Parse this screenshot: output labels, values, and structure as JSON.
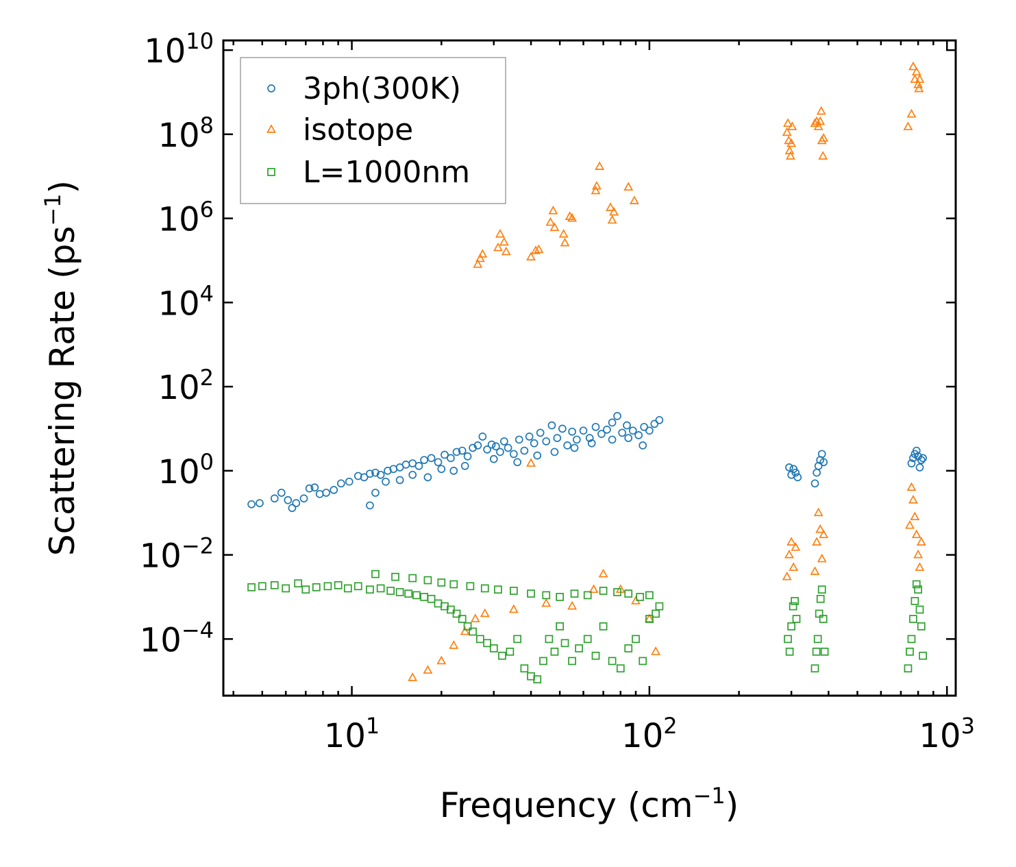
{
  "chart_data": {
    "type": "scatter",
    "title": "",
    "xlabel": {
      "text": "Frequency (cm",
      "sup": "−1",
      "tail": ")"
    },
    "ylabel": {
      "text": "Scattering Rate (ps",
      "sup": "−1",
      "tail": ")"
    },
    "xscale": "log",
    "yscale": "log",
    "xlim": [
      3.7,
      1070
    ],
    "ylim": [
      4.5e-06,
      17000000000
    ],
    "x_ticks": [
      {
        "value": 10,
        "base": "10",
        "exp": "1"
      },
      {
        "value": 100,
        "base": "10",
        "exp": "2"
      },
      {
        "value": 1000,
        "base": "10",
        "exp": "3"
      }
    ],
    "y_ticks": [
      {
        "value": 0.0001,
        "base": "10",
        "exp": "−4"
      },
      {
        "value": 0.01,
        "base": "10",
        "exp": "−2"
      },
      {
        "value": 1,
        "base": "10",
        "exp": "0"
      },
      {
        "value": 100,
        "base": "10",
        "exp": "2"
      },
      {
        "value": 10000,
        "base": "10",
        "exp": "4"
      },
      {
        "value": 1000000,
        "base": "10",
        "exp": "6"
      },
      {
        "value": 100000000,
        "base": "10",
        "exp": "8"
      },
      {
        "value": 10000000000,
        "base": "10",
        "exp": "10"
      }
    ],
    "legend_position": "top-left",
    "series": [
      {
        "name": "3ph(300K)",
        "marker": "circle",
        "color": "#1f77b4",
        "points": [
          [
            4.6,
            0.16
          ],
          [
            4.9,
            0.17
          ],
          [
            5.5,
            0.22
          ],
          [
            5.8,
            0.3
          ],
          [
            6.1,
            0.2
          ],
          [
            6.3,
            0.13
          ],
          [
            6.5,
            0.17
          ],
          [
            6.9,
            0.22
          ],
          [
            7.2,
            0.38
          ],
          [
            7.5,
            0.4
          ],
          [
            7.8,
            0.28
          ],
          [
            8.2,
            0.3
          ],
          [
            8.7,
            0.35
          ],
          [
            9.2,
            0.5
          ],
          [
            9.8,
            0.55
          ],
          [
            10.5,
            0.75
          ],
          [
            11.0,
            0.7
          ],
          [
            11.5,
            0.85
          ],
          [
            12.0,
            0.9
          ],
          [
            12.5,
            0.8
          ],
          [
            13.2,
            1.0
          ],
          [
            13.8,
            1.1
          ],
          [
            14.5,
            1.2
          ],
          [
            15.2,
            1.4
          ],
          [
            16.0,
            1.5
          ],
          [
            16.8,
            1.3
          ],
          [
            17.5,
            1.8
          ],
          [
            18.5,
            2.0
          ],
          [
            19.5,
            1.6
          ],
          [
            20.5,
            2.4
          ],
          [
            21.5,
            2.0
          ],
          [
            22.5,
            2.8
          ],
          [
            23.5,
            3.0
          ],
          [
            24.5,
            2.2
          ],
          [
            25.5,
            3.5
          ],
          [
            26.5,
            4.0
          ],
          [
            27.5,
            6.5
          ],
          [
            28.5,
            3.2
          ],
          [
            29.5,
            4.2
          ],
          [
            30.5,
            3.8
          ],
          [
            31.5,
            2.8
          ],
          [
            32.5,
            5.0
          ],
          [
            33.5,
            3.5
          ],
          [
            35.0,
            2.5
          ],
          [
            36.5,
            5.5
          ],
          [
            38.0,
            3.0
          ],
          [
            39.5,
            6.5
          ],
          [
            41.0,
            4.5
          ],
          [
            43.0,
            8.0
          ],
          [
            45.0,
            5.0
          ],
          [
            47.0,
            12.0
          ],
          [
            49.0,
            6.0
          ],
          [
            51.0,
            10.0
          ],
          [
            53.0,
            4.0
          ],
          [
            55.0,
            8.5
          ],
          [
            57.0,
            5.5
          ],
          [
            60.0,
            9.0
          ],
          [
            63.0,
            6.0
          ],
          [
            66.0,
            11.0
          ],
          [
            69.0,
            7.5
          ],
          [
            72.0,
            9.5
          ],
          [
            75.0,
            14.0
          ],
          [
            78.0,
            20.0
          ],
          [
            81.0,
            8.0
          ],
          [
            84.0,
            12.0
          ],
          [
            88.0,
            9.0
          ],
          [
            92.0,
            7.0
          ],
          [
            96.0,
            11.0
          ],
          [
            100.0,
            9.0
          ],
          [
            104.0,
            13.0
          ],
          [
            108.0,
            16.0
          ],
          [
            11.5,
            0.15
          ],
          [
            12.0,
            0.3
          ],
          [
            13.0,
            0.55
          ],
          [
            14.5,
            0.6
          ],
          [
            16.0,
            0.8
          ],
          [
            18.0,
            0.7
          ],
          [
            20.0,
            1.1
          ],
          [
            22.0,
            1.0
          ],
          [
            24.0,
            1.3
          ],
          [
            30.0,
            1.9
          ],
          [
            36.0,
            1.6
          ],
          [
            42.0,
            2.3
          ],
          [
            48.0,
            2.8
          ],
          [
            56.0,
            3.5
          ],
          [
            64.0,
            4.5
          ],
          [
            75.0,
            5.5
          ],
          [
            85.0,
            6.0
          ],
          [
            95.0,
            4.0
          ],
          [
            295,
            1.2
          ],
          [
            300,
            0.8
          ],
          [
            305,
            1.1
          ],
          [
            310,
            0.9
          ],
          [
            315,
            0.7
          ],
          [
            360,
            0.5
          ],
          [
            365,
            0.9
          ],
          [
            370,
            1.3
          ],
          [
            375,
            1.8
          ],
          [
            380,
            2.5
          ],
          [
            385,
            1.6
          ],
          [
            760,
            1.5
          ],
          [
            770,
            2.0
          ],
          [
            780,
            2.5
          ],
          [
            790,
            3.0
          ],
          [
            800,
            2.2
          ],
          [
            810,
            1.2
          ],
          [
            820,
            1.8
          ],
          [
            830,
            2.0
          ]
        ]
      },
      {
        "name": "isotope",
        "marker": "triangle",
        "color": "#ff7f0e",
        "points": [
          [
            26.5,
            80000
          ],
          [
            27.0,
            110000
          ],
          [
            27.5,
            140000
          ],
          [
            31.0,
            200000
          ],
          [
            31.5,
            420000
          ],
          [
            32.5,
            270000
          ],
          [
            33.0,
            160000
          ],
          [
            40.0,
            120000
          ],
          [
            41.5,
            170000
          ],
          [
            42.5,
            180000
          ],
          [
            46.5,
            800000
          ],
          [
            47.5,
            1500000
          ],
          [
            48.0,
            600000
          ],
          [
            51.5,
            420000
          ],
          [
            52.0,
            260000
          ],
          [
            54.0,
            1100000
          ],
          [
            55.0,
            1000000
          ],
          [
            66.0,
            4500000
          ],
          [
            66.5,
            5800000
          ],
          [
            68.0,
            17000000
          ],
          [
            74.0,
            1800000
          ],
          [
            75.0,
            900000
          ],
          [
            76.0,
            1400000
          ],
          [
            85.0,
            5500000
          ],
          [
            89.0,
            2600000
          ],
          [
            40.0,
            1.5
          ],
          [
            16.0,
            1.2e-05
          ],
          [
            18.0,
            1.8e-05
          ],
          [
            20.0,
            3e-05
          ],
          [
            22.0,
            7e-05
          ],
          [
            24.0,
            0.00015
          ],
          [
            26.0,
            0.0003
          ],
          [
            28.0,
            0.0004
          ],
          [
            35.0,
            0.0005
          ],
          [
            45.0,
            0.0007
          ],
          [
            55.0,
            0.0006
          ],
          [
            65.0,
            0.0015
          ],
          [
            70.0,
            0.0035
          ],
          [
            80.0,
            0.0015
          ],
          [
            90.0,
            0.0008
          ],
          [
            100.0,
            0.0003
          ],
          [
            105.0,
            5e-05
          ],
          [
            290,
            110000000
          ],
          [
            292,
            180000000
          ],
          [
            294,
            70000000
          ],
          [
            296,
            40000000
          ],
          [
            298,
            30000000
          ],
          [
            300,
            60000000
          ],
          [
            302,
            150000000
          ],
          [
            360,
            180000000
          ],
          [
            365,
            200000000
          ],
          [
            370,
            150000000
          ],
          [
            375,
            200000000
          ],
          [
            378,
            350000000
          ],
          [
            380,
            70000000
          ],
          [
            383,
            30000000
          ],
          [
            385,
            80000000
          ],
          [
            740,
            150000000
          ],
          [
            760,
            300000000
          ],
          [
            770,
            4000000000
          ],
          [
            780,
            2000000000
          ],
          [
            790,
            3000000000
          ],
          [
            800,
            1500000000
          ],
          [
            805,
            1200000000
          ],
          [
            810,
            2000000000
          ],
          [
            290,
            0.003
          ],
          [
            295,
            0.01
          ],
          [
            300,
            0.02
          ],
          [
            305,
            0.005
          ],
          [
            310,
            0.015
          ],
          [
            360,
            0.004
          ],
          [
            365,
            0.02
          ],
          [
            370,
            0.1
          ],
          [
            375,
            0.04
          ],
          [
            380,
            0.008
          ],
          [
            385,
            0.03
          ],
          [
            750,
            0.05
          ],
          [
            760,
            0.4
          ],
          [
            770,
            0.2
          ],
          [
            780,
            0.08
          ],
          [
            790,
            0.03
          ],
          [
            800,
            0.01
          ],
          [
            810,
            0.005
          ],
          [
            820,
            0.02
          ]
        ]
      },
      {
        "name": "L=1000nm",
        "marker": "square",
        "color": "#2ca02c",
        "points": [
          [
            4.6,
            0.0017
          ],
          [
            5.0,
            0.0018
          ],
          [
            5.5,
            0.0019
          ],
          [
            6.0,
            0.0016
          ],
          [
            6.6,
            0.0021
          ],
          [
            7.0,
            0.0015
          ],
          [
            7.6,
            0.0017
          ],
          [
            8.3,
            0.0018
          ],
          [
            9.0,
            0.0019
          ],
          [
            9.7,
            0.0016
          ],
          [
            10.5,
            0.0018
          ],
          [
            11.5,
            0.0015
          ],
          [
            12.5,
            0.0016
          ],
          [
            13.5,
            0.0014
          ],
          [
            14.5,
            0.0013
          ],
          [
            15.5,
            0.0012
          ],
          [
            16.5,
            0.0011
          ],
          [
            17.5,
            0.001
          ],
          [
            18.5,
            0.0009
          ],
          [
            19.5,
            0.0007
          ],
          [
            20.5,
            0.0006
          ],
          [
            21.5,
            0.0005
          ],
          [
            22.5,
            0.0004
          ],
          [
            23.5,
            0.0003
          ],
          [
            24.5,
            0.0002
          ],
          [
            25.5,
            0.00015
          ],
          [
            27.0,
            0.0001
          ],
          [
            28.5,
            8e-05
          ],
          [
            30.0,
            6e-05
          ],
          [
            32.0,
            4e-05
          ],
          [
            34.0,
            5e-05
          ],
          [
            36.0,
            0.0001
          ],
          [
            38.0,
            2e-05
          ],
          [
            40.0,
            1.3e-05
          ],
          [
            42.0,
            1.1e-05
          ],
          [
            44.0,
            3e-05
          ],
          [
            46.0,
            0.0001
          ],
          [
            48.0,
            5e-05
          ],
          [
            50.0,
            0.0002
          ],
          [
            52.0,
            8e-05
          ],
          [
            55.0,
            3e-05
          ],
          [
            58.0,
            6e-05
          ],
          [
            62.0,
            0.0001
          ],
          [
            66.0,
            4e-05
          ],
          [
            70.0,
            0.0002
          ],
          [
            75.0,
            3e-05
          ],
          [
            80.0,
            2e-05
          ],
          [
            85.0,
            6e-05
          ],
          [
            90.0,
            0.0001
          ],
          [
            95.0,
            3e-05
          ],
          [
            100.0,
            0.0003
          ],
          [
            105.0,
            0.0004
          ],
          [
            108.0,
            0.0006
          ],
          [
            12.0,
            0.0035
          ],
          [
            14.0,
            0.003
          ],
          [
            16.0,
            0.0028
          ],
          [
            18.0,
            0.0025
          ],
          [
            20.0,
            0.0022
          ],
          [
            22.0,
            0.002
          ],
          [
            25.0,
            0.0018
          ],
          [
            28.0,
            0.0016
          ],
          [
            31.0,
            0.0015
          ],
          [
            35.0,
            0.0014
          ],
          [
            40.0,
            0.0012
          ],
          [
            45.0,
            0.0011
          ],
          [
            50.0,
            0.001
          ],
          [
            56.0,
            0.0012
          ],
          [
            62.0,
            0.0011
          ],
          [
            70.0,
            0.0014
          ],
          [
            78.0,
            0.0013
          ],
          [
            85.0,
            0.0012
          ],
          [
            93.0,
            0.001
          ],
          [
            100.0,
            0.0011
          ],
          [
            292,
            0.0001
          ],
          [
            296,
            5e-05
          ],
          [
            300,
            0.0002
          ],
          [
            304,
            0.0006
          ],
          [
            308,
            0.0008
          ],
          [
            312,
            0.0003
          ],
          [
            360,
            2e-05
          ],
          [
            364,
            5e-05
          ],
          [
            368,
            0.0001
          ],
          [
            372,
            0.0004
          ],
          [
            376,
            0.0009
          ],
          [
            380,
            0.0015
          ],
          [
            384,
            0.0003
          ],
          [
            388,
            5e-05
          ],
          [
            740,
            2e-05
          ],
          [
            750,
            5e-05
          ],
          [
            760,
            0.0001
          ],
          [
            770,
            0.0003
          ],
          [
            780,
            0.0008
          ],
          [
            790,
            0.002
          ],
          [
            800,
            0.0015
          ],
          [
            810,
            0.0005
          ],
          [
            820,
            0.0002
          ],
          [
            830,
            4e-05
          ]
        ]
      }
    ]
  }
}
